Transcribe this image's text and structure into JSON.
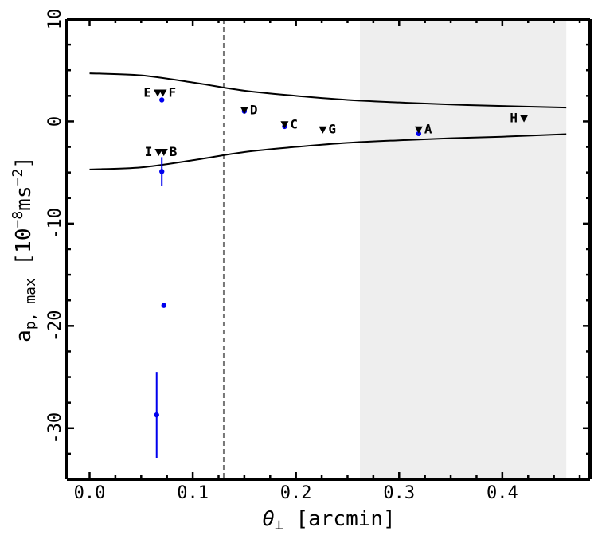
{
  "chart_data": {
    "type": "scatter",
    "xlabel": "θ⊥ [arcmin]",
    "ylabel": "a_p,max [10^-8 ms^-2]",
    "ylabel_parts": {
      "main": "a",
      "sub": "p, max",
      "bracket_open": "[10",
      "exp1": "−8",
      "unit": "ms",
      "exp2": "−2",
      "bracket_close": "]"
    },
    "xlabel_parts": {
      "symbol": "θ",
      "sub": "⊥",
      "unit": "[arcmin]"
    },
    "xlim": [
      -0.022,
      0.485
    ],
    "ylim": [
      -35,
      10
    ],
    "x_ticks": [
      0.0,
      0.1,
      0.2,
      0.3,
      0.4
    ],
    "x_tick_labels": [
      "0.0",
      "0.1",
      "0.2",
      "0.3",
      "0.4"
    ],
    "y_ticks": [
      10,
      0,
      -10,
      -20,
      -30
    ],
    "y_tick_labels": [
      "10",
      "0",
      "-10",
      "-20",
      "-30"
    ],
    "grid": false,
    "vline_dashed_x": 0.13,
    "shaded_region_x": [
      0.262,
      0.462
    ],
    "envelope_upper": {
      "x": [
        0.0,
        0.05,
        0.1,
        0.15,
        0.2,
        0.25,
        0.3,
        0.35,
        0.4,
        0.462
      ],
      "y": [
        4.7,
        4.5,
        3.8,
        3.0,
        2.5,
        2.1,
        1.85,
        1.65,
        1.5,
        1.35
      ]
    },
    "envelope_lower": {
      "x": [
        0.0,
        0.05,
        0.1,
        0.15,
        0.2,
        0.25,
        0.3,
        0.35,
        0.4,
        0.462
      ],
      "y": [
        -4.7,
        -4.5,
        -3.8,
        -3.0,
        -2.5,
        -2.1,
        -1.85,
        -1.65,
        -1.5,
        -1.25
      ]
    },
    "upper_limits": [
      {
        "label": "E",
        "x": 0.066,
        "y": 2.8,
        "label_side": "left"
      },
      {
        "label": "F",
        "x": 0.071,
        "y": 2.8,
        "label_side": "right"
      },
      {
        "label": "D",
        "x": 0.15,
        "y": 1.1,
        "label_side": "right"
      },
      {
        "label": "C",
        "x": 0.189,
        "y": -0.3,
        "label_side": "right"
      },
      {
        "label": "G",
        "x": 0.226,
        "y": -0.8,
        "label_side": "right"
      },
      {
        "label": "A",
        "x": 0.319,
        "y": -0.8,
        "label_side": "right"
      },
      {
        "label": "H",
        "x": 0.421,
        "y": 0.3,
        "label_side": "left"
      },
      {
        "label": "I",
        "x": 0.067,
        "y": -3.0,
        "label_side": "left"
      },
      {
        "label": "B",
        "x": 0.072,
        "y": -3.0,
        "label_side": "right"
      }
    ],
    "points": [
      {
        "x": 0.07,
        "y": 2.1,
        "yerr": 0
      },
      {
        "x": 0.15,
        "y": 1.0,
        "yerr": 0
      },
      {
        "x": 0.189,
        "y": -0.5,
        "yerr": 0
      },
      {
        "x": 0.319,
        "y": -1.2,
        "yerr": 0
      },
      {
        "x": 0.07,
        "y": -4.9,
        "yerr": 1.4
      },
      {
        "x": 0.072,
        "y": -18.0,
        "yerr": 0
      },
      {
        "x": 0.065,
        "y": -28.7,
        "yerr": 4.2
      }
    ],
    "colors": {
      "points": "#0000ee",
      "lines": "#000000",
      "shade": "#eeeeee",
      "vline": "#777777"
    }
  }
}
